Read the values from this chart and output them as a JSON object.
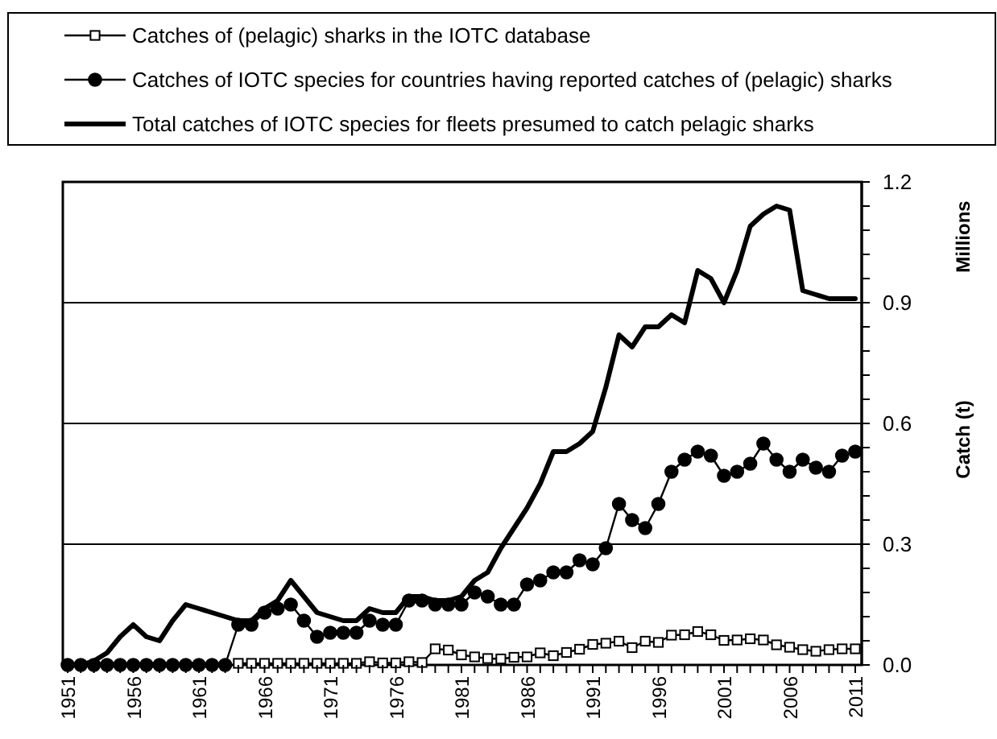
{
  "chart_data": {
    "type": "line",
    "categories": [
      "1951",
      null,
      null,
      null,
      null,
      "1956",
      null,
      null,
      null,
      null,
      "1961",
      null,
      null,
      null,
      null,
      "1966",
      null,
      null,
      null,
      null,
      "1971",
      null,
      null,
      null,
      null,
      "1976",
      null,
      null,
      null,
      null,
      "1981",
      null,
      null,
      null,
      null,
      "1986",
      null,
      null,
      null,
      null,
      "1991",
      null,
      null,
      null,
      null,
      "1996",
      null,
      null,
      null,
      null,
      "2001",
      null,
      null,
      null,
      null,
      "2006",
      null,
      null,
      null,
      null,
      "2011"
    ],
    "series": [
      {
        "name": "Catches of (pelagic) sharks in the IOTC database",
        "color": "#000000",
        "marker": "square",
        "values": [
          null,
          null,
          null,
          null,
          null,
          null,
          null,
          null,
          null,
          null,
          null,
          null,
          null,
          0.004,
          0.004,
          0.004,
          0.004,
          0.004,
          0.004,
          0.004,
          0.004,
          0.004,
          0.004,
          0.008,
          0.005,
          0.005,
          0.008,
          0.006,
          0.04,
          0.037,
          0.025,
          0.02,
          0.016,
          0.015,
          0.019,
          0.02,
          0.03,
          0.023,
          0.031,
          0.039,
          0.051,
          0.054,
          0.059,
          0.043,
          0.059,
          0.056,
          0.074,
          0.075,
          0.083,
          0.075,
          0.061,
          0.062,
          0.065,
          0.062,
          0.05,
          0.044,
          0.038,
          0.034,
          0.038,
          0.04,
          0.04
        ]
      },
      {
        "name": "Catches of IOTC species for countries having reported catches of (pelagic) sharks",
        "color": "#000000",
        "marker": "circle",
        "values": [
          0,
          0,
          0,
          0,
          0,
          0,
          0,
          0,
          0,
          0,
          0,
          0,
          0,
          0.1,
          0.1,
          0.13,
          0.14,
          0.15,
          0.11,
          0.07,
          0.08,
          0.08,
          0.08,
          0.11,
          0.1,
          0.1,
          0.16,
          0.16,
          0.15,
          0.15,
          0.15,
          0.18,
          0.17,
          0.15,
          0.15,
          0.2,
          0.21,
          0.23,
          0.23,
          0.26,
          0.25,
          0.29,
          0.4,
          0.36,
          0.34,
          0.4,
          0.48,
          0.51,
          0.53,
          0.52,
          0.47,
          0.48,
          0.5,
          0.55,
          0.51,
          0.48,
          0.51,
          0.49,
          0.48,
          0.52,
          0.53
        ]
      },
      {
        "name": "Total catches of IOTC species for fleets presumed to catch pelagic sharks",
        "color": "#000000",
        "marker": "none",
        "values": [
          0,
          0,
          0.01,
          0.03,
          0.07,
          0.1,
          0.07,
          0.06,
          0.11,
          0.15,
          0.14,
          0.13,
          0.12,
          0.11,
          0.11,
          0.14,
          0.16,
          0.21,
          0.17,
          0.13,
          0.12,
          0.11,
          0.11,
          0.14,
          0.13,
          0.13,
          0.17,
          0.17,
          0.16,
          0.16,
          0.17,
          0.21,
          0.23,
          0.29,
          0.34,
          0.39,
          0.45,
          0.53,
          0.53,
          0.55,
          0.58,
          0.69,
          0.82,
          0.79,
          0.84,
          0.84,
          0.87,
          0.85,
          0.98,
          0.96,
          0.9,
          0.98,
          1.09,
          1.12,
          1.14,
          1.13,
          0.93,
          0.92,
          0.91,
          0.91,
          0.91
        ]
      }
    ],
    "ylim": [
      0,
      1.2
    ],
    "yticks": [
      {
        "value": 0,
        "label": "0.0"
      },
      {
        "value": 0.06,
        "label": null
      },
      {
        "value": 0.12,
        "label": null
      },
      {
        "value": 0.18,
        "label": null
      },
      {
        "value": 0.24,
        "label": null
      },
      0.3,
      {
        "value": 0.36,
        "label": null
      },
      {
        "value": 0.42,
        "label": null
      },
      {
        "value": 0.48,
        "label": null
      },
      {
        "value": 0.54,
        "label": null
      },
      0.6,
      {
        "value": 0.66,
        "label": null
      },
      {
        "value": 0.72,
        "label": null
      },
      {
        "value": 0.78,
        "label": null
      },
      {
        "value": 0.84,
        "label": null
      },
      0.9,
      {
        "value": 0.96,
        "label": null
      },
      {
        "value": 1.02,
        "label": null
      },
      {
        "value": 1.08,
        "label": null
      },
      {
        "value": 1.14,
        "label": null
      },
      1.2
    ],
    "ylabel": "Catch (t)",
    "annotations": [
      "Millions"
    ],
    "grid": "y",
    "legend": "top"
  }
}
